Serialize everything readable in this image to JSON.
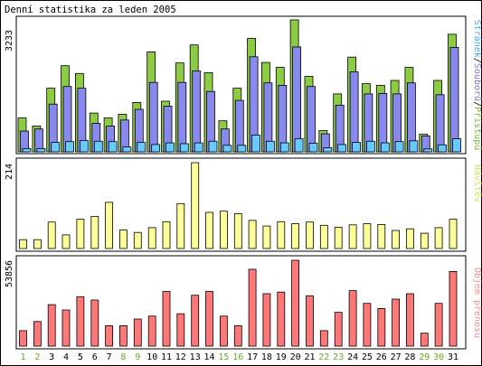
{
  "title": "Denní statistika za leden 2005",
  "colors": {
    "frame": "#000000",
    "page_bg": "#ffffff",
    "hits": "#8ccc44",
    "hits_label": "#77bb33",
    "files": "#8888ee",
    "files_label": "#7777dd",
    "pages": "#66ccff",
    "pages_label": "#44aaee",
    "visits": "#ffff99",
    "visits_label": "#dddd55",
    "volume": "#ff7777",
    "volume_label": "#ff8888",
    "weekday_label": "#000000",
    "weekend_label": "#66aa22",
    "bar_edge": "#000000"
  },
  "chart_data": [
    {
      "type": "bar",
      "title": "Denní statistika za leden 2005",
      "y_max_label": "3233",
      "ylim": [
        0,
        3233
      ],
      "categories": [
        "1",
        "2",
        "3",
        "4",
        "5",
        "6",
        "7",
        "8",
        "9",
        "10",
        "11",
        "12",
        "13",
        "14",
        "15",
        "16",
        "17",
        "18",
        "19",
        "20",
        "21",
        "22",
        "23",
        "24",
        "25",
        "26",
        "27",
        "28",
        "29",
        "30",
        "31"
      ],
      "weekend": [
        1,
        2,
        8,
        9,
        15,
        16,
        22,
        23,
        29,
        30
      ],
      "series": [
        {
          "name": "Přístupů",
          "values": [
            830,
            630,
            1560,
            2110,
            1920,
            950,
            830,
            920,
            1210,
            2450,
            1240,
            2180,
            2620,
            1940,
            760,
            1560,
            2780,
            2190,
            2070,
            3233,
            1850,
            520,
            1420,
            2320,
            1670,
            1630,
            1750,
            2070,
            430,
            1750,
            2880
          ]
        },
        {
          "name": "Souborů",
          "values": [
            510,
            560,
            1170,
            1600,
            1560,
            700,
            630,
            780,
            1040,
            1700,
            1120,
            1700,
            1980,
            1480,
            560,
            1260,
            2330,
            1690,
            1630,
            2570,
            1600,
            440,
            1140,
            1960,
            1420,
            1430,
            1420,
            1690,
            390,
            1400,
            2560
          ]
        },
        {
          "name": "Stránek",
          "values": [
            80,
            80,
            230,
            250,
            280,
            260,
            250,
            120,
            230,
            180,
            220,
            200,
            220,
            260,
            160,
            160,
            410,
            260,
            220,
            320,
            210,
            100,
            180,
            230,
            260,
            220,
            250,
            270,
            70,
            170,
            320
          ]
        }
      ],
      "legend": "right, vertical"
    },
    {
      "type": "bar",
      "y_max_label": "214",
      "ylim": [
        0,
        214
      ],
      "categories": [
        "1",
        "2",
        "3",
        "4",
        "5",
        "6",
        "7",
        "8",
        "9",
        "10",
        "11",
        "12",
        "13",
        "14",
        "15",
        "16",
        "17",
        "18",
        "19",
        "20",
        "21",
        "22",
        "23",
        "24",
        "25",
        "26",
        "27",
        "28",
        "29",
        "30",
        "31"
      ],
      "series": [
        {
          "name": "Návštěv",
          "values": [
            22,
            22,
            66,
            34,
            73,
            80,
            115,
            46,
            40,
            52,
            67,
            112,
            214,
            90,
            93,
            87,
            70,
            56,
            67,
            62,
            66,
            58,
            53,
            59,
            62,
            60,
            45,
            49,
            38,
            52,
            73
          ]
        }
      ],
      "legend": "right, vertical"
    },
    {
      "type": "bar",
      "y_max_label": "53856",
      "ylim": [
        0,
        53856
      ],
      "categories": [
        "1",
        "2",
        "3",
        "4",
        "5",
        "6",
        "7",
        "8",
        "9",
        "10",
        "11",
        "12",
        "13",
        "14",
        "15",
        "16",
        "17",
        "18",
        "19",
        "20",
        "21",
        "22",
        "23",
        "24",
        "25",
        "26",
        "27",
        "28",
        "29",
        "30",
        "31"
      ],
      "series": [
        {
          "name": "Objem přenosu",
          "values": [
            9700,
            15400,
            26000,
            22700,
            31000,
            28900,
            12800,
            12800,
            17000,
            18800,
            34300,
            20300,
            31900,
            34300,
            18800,
            12800,
            48200,
            32900,
            33900,
            53856,
            31600,
            9700,
            21200,
            34800,
            26800,
            23600,
            29500,
            32900,
            8100,
            26800,
            46800
          ]
        }
      ],
      "legend": "right, vertical"
    }
  ]
}
